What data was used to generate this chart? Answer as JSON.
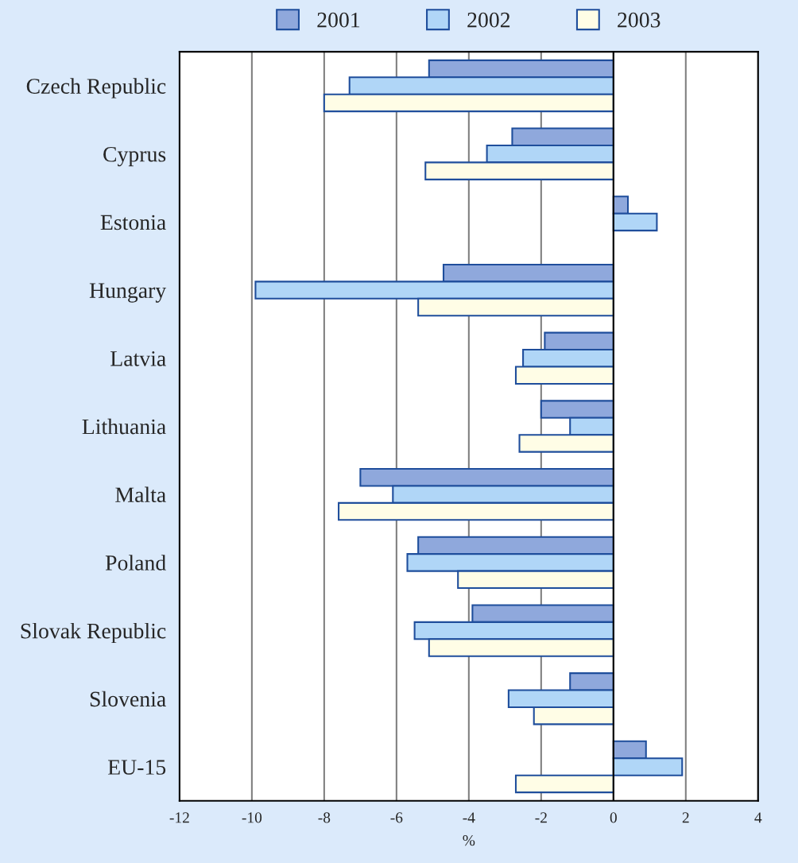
{
  "chart_data": {
    "type": "bar",
    "orientation": "horizontal",
    "xlabel": "%",
    "categories": [
      "Czech Republic",
      "Cyprus",
      "Estonia",
      "Hungary",
      "Latvia",
      "Lithuania",
      "Malta",
      "Poland",
      "Slovak Republic",
      "Slovenia",
      "EU-15"
    ],
    "series": [
      {
        "name": "2001",
        "color": "#8fa8dc",
        "values": [
          -5.1,
          -2.8,
          0.4,
          -4.7,
          -1.9,
          -2.0,
          -7.0,
          -5.4,
          -3.9,
          -1.2,
          0.9
        ]
      },
      {
        "name": "2002",
        "color": "#b0d6f7",
        "values": [
          -7.3,
          -3.5,
          1.2,
          -9.9,
          -2.5,
          -1.2,
          -6.1,
          -5.7,
          -5.5,
          -2.9,
          1.9
        ]
      },
      {
        "name": "2003",
        "color": "#fffde6",
        "values": [
          -8.0,
          -5.2,
          null,
          -5.4,
          -2.7,
          -2.6,
          -7.6,
          -4.3,
          -5.1,
          -2.2,
          -2.7
        ]
      }
    ],
    "xlim": [
      -12,
      4
    ],
    "xticks": [
      -12,
      -10,
      -8,
      -6,
      -4,
      -2,
      0,
      2,
      4
    ],
    "grid": "x",
    "legend": "top"
  }
}
